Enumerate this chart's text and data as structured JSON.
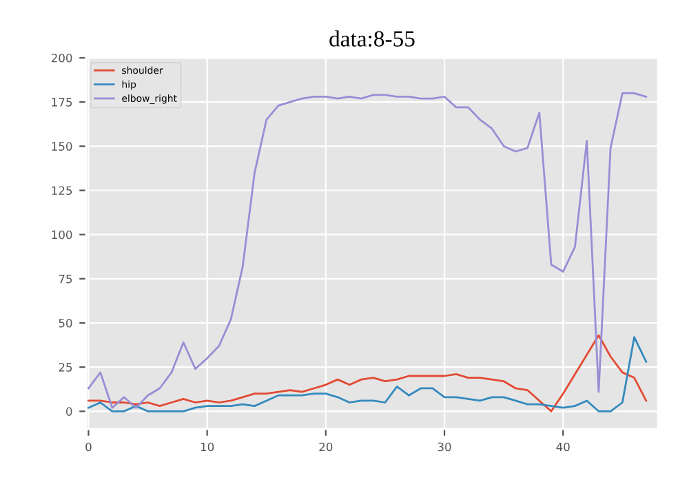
{
  "chart_data": {
    "type": "line",
    "title": "data:8-55",
    "x": [
      0,
      1,
      2,
      3,
      4,
      5,
      6,
      7,
      8,
      9,
      10,
      11,
      12,
      13,
      14,
      15,
      16,
      17,
      18,
      19,
      20,
      21,
      22,
      23,
      24,
      25,
      26,
      27,
      28,
      29,
      30,
      31,
      32,
      33,
      34,
      35,
      36,
      37,
      38,
      39,
      40,
      41,
      42,
      43,
      44,
      45,
      46,
      47
    ],
    "series": [
      {
        "name": "shoulder",
        "color": "#e24a33",
        "values": [
          6,
          6,
          5,
          5,
          4,
          5,
          3,
          5,
          7,
          5,
          6,
          5,
          6,
          8,
          10,
          10,
          11,
          12,
          11,
          13,
          15,
          18,
          15,
          18,
          19,
          17,
          18,
          20,
          20,
          20,
          20,
          21,
          19,
          19,
          18,
          17,
          13,
          12,
          6,
          0,
          10,
          21,
          32,
          43,
          31,
          22,
          19,
          6
        ]
      },
      {
        "name": "hip",
        "color": "#348abd",
        "values": [
          2,
          5,
          0,
          0,
          3,
          0,
          0,
          0,
          0,
          2,
          3,
          3,
          3,
          4,
          3,
          6,
          9,
          9,
          9,
          10,
          10,
          8,
          5,
          6,
          6,
          5,
          14,
          9,
          13,
          13,
          8,
          8,
          7,
          6,
          8,
          8,
          6,
          4,
          4,
          3,
          2,
          3,
          6,
          0,
          0,
          5,
          42,
          28
        ]
      },
      {
        "name": "elbow_right",
        "color": "#988ed5",
        "values": [
          13,
          22,
          2,
          8,
          2,
          9,
          13,
          22,
          39,
          24,
          30,
          37,
          52,
          82,
          135,
          165,
          173,
          175,
          177,
          178,
          178,
          177,
          178,
          177,
          179,
          179,
          178,
          178,
          177,
          177,
          178,
          172,
          172,
          165,
          160,
          150,
          147,
          149,
          169,
          83,
          79,
          93,
          153,
          11,
          149,
          180,
          180,
          178
        ]
      }
    ],
    "xlim": [
      -0.2,
      48
    ],
    "ylim": [
      -10,
      200
    ],
    "xticks": [
      0,
      10,
      20,
      30,
      40
    ],
    "yticks": [
      0,
      25,
      50,
      75,
      100,
      125,
      150,
      175,
      200
    ],
    "grid": true,
    "legend": "top left"
  }
}
